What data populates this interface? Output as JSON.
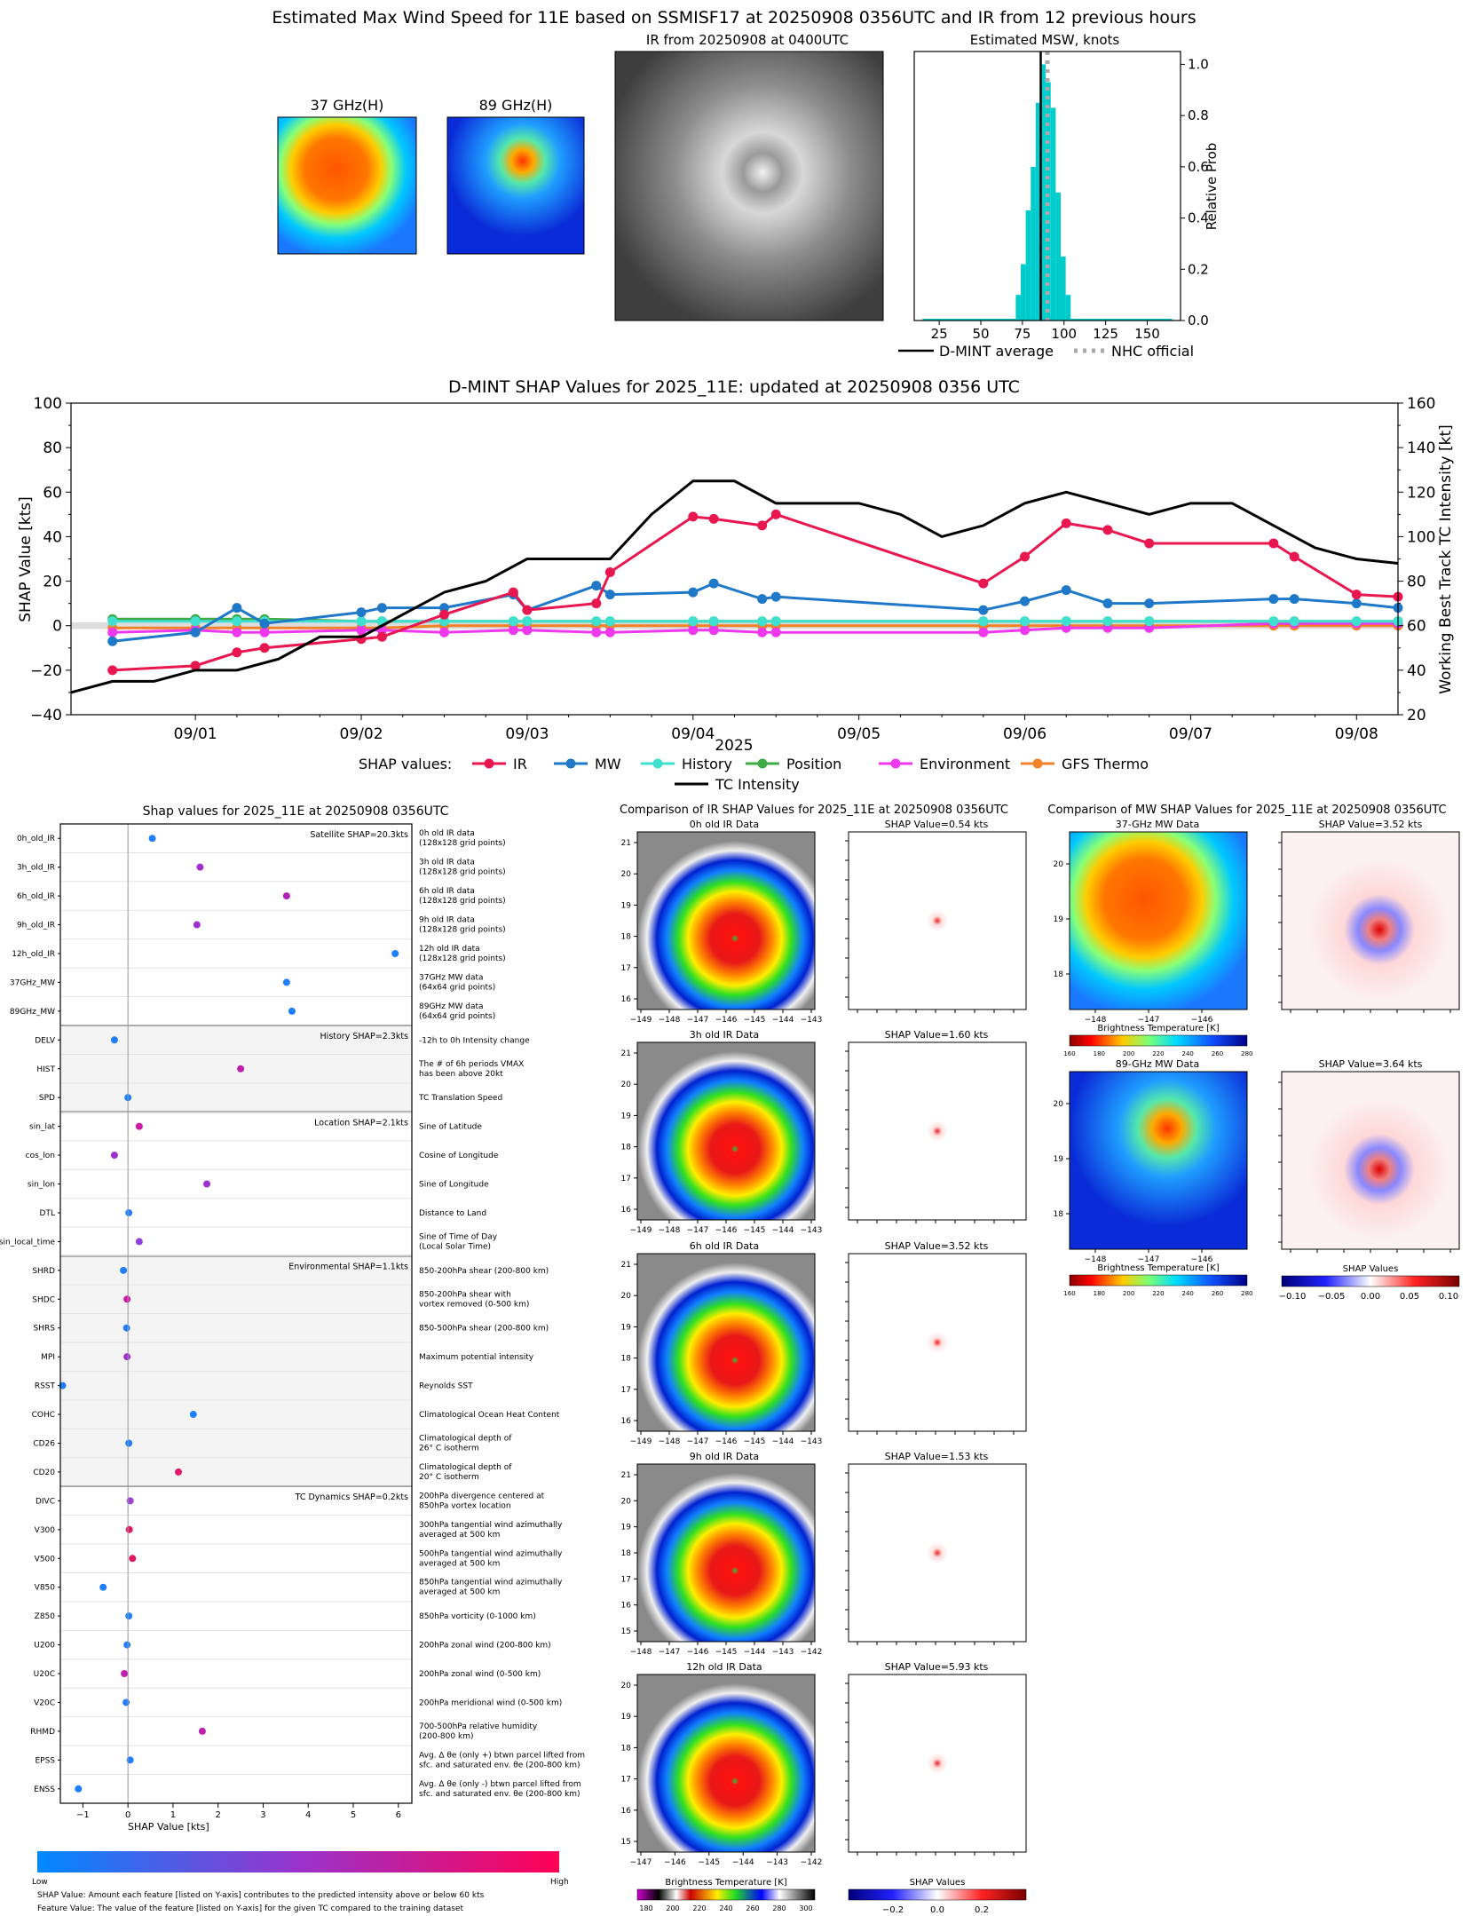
{
  "page_title": "Estimated Max Wind Speed for 11E based on SSMISF17 at 20250908 0356UTC and IR from 12 previous hours",
  "colors": {
    "ir": "#e8174f",
    "mw": "#1f78c8",
    "history": "#40e0d0",
    "position": "#3daa45",
    "environment": "#ee38ee",
    "gfs": "#f0822a",
    "intensity": "#000000",
    "histogram": "#00cccc",
    "nhc": "#aaaaaa",
    "low": "#0088ff",
    "high": "#ff0055"
  },
  "top": {
    "mw37_title": "37 GHz(H)",
    "mw89_title": "89 GHz(H)",
    "ir_title": "IR from 20250908 at 0400UTC",
    "hist_title": "Estimated MSW, knots",
    "hist_ylabel": "Relative Prob",
    "legend_dmint": "D-MINT average",
    "legend_nhc": "NHC official"
  },
  "panel_titles": {
    "bar": "Shap values for 2025_11E at 20250908 0356UTC",
    "ir_compare": "Comparison of IR SHAP Values for 2025_11E at 20250908 0356UTC",
    "mw_compare": "Comparison of MW SHAP Values for 2025_11E at 20250908 0356UTC"
  },
  "ir_panels": [
    {
      "label": "0h old IR Data",
      "shap": "SHAP Value=0.54 kts",
      "yticks": [
        "21",
        "20",
        "19",
        "18",
        "17",
        "16"
      ],
      "xticks": [
        "−149",
        "−148",
        "−147",
        "−146",
        "−145",
        "−144",
        "−143"
      ]
    },
    {
      "label": "3h old IR Data",
      "shap": "SHAP Value=1.60 kts",
      "yticks": [
        "21",
        "20",
        "19",
        "18",
        "17",
        "16"
      ],
      "xticks": [
        "−149",
        "−148",
        "−147",
        "−146",
        "−145",
        "−144",
        "−143"
      ]
    },
    {
      "label": "6h old IR Data",
      "shap": "SHAP Value=3.52 kts",
      "yticks": [
        "21",
        "20",
        "19",
        "18",
        "17",
        "16"
      ],
      "xticks": [
        "−149",
        "−148",
        "−147",
        "−146",
        "−145",
        "−144",
        "−143"
      ]
    },
    {
      "label": "9h old IR Data",
      "shap": "SHAP Value=1.53 kts",
      "yticks": [
        "21",
        "20",
        "19",
        "18",
        "17",
        "16",
        "15"
      ],
      "xticks": [
        "−148",
        "−147",
        "−146",
        "−145",
        "−144",
        "−143",
        "−142"
      ]
    },
    {
      "label": "12h old IR Data",
      "shap": "SHAP Value=5.93 kts",
      "yticks": [
        "20",
        "19",
        "18",
        "17",
        "16",
        "15"
      ],
      "xticks": [
        "−147",
        "−146",
        "−145",
        "−144",
        "−143",
        "−142"
      ]
    }
  ],
  "ir_colorbar": {
    "label": "Brightness Temperature [K]",
    "ticks": [
      "180",
      "200",
      "220",
      "240",
      "260",
      "280",
      "300"
    ]
  },
  "ir_shap_colorbar": {
    "label": "SHAP Values",
    "ticks": [
      "−0.2",
      "0.0",
      "0.2"
    ]
  },
  "mw_panels": [
    {
      "label": "37-GHz MW Data",
      "shap": "SHAP Value=3.52 kts",
      "yticks": [
        "20",
        "19",
        "18"
      ],
      "xticks": [
        "−148",
        "−147",
        "−146"
      ],
      "cb_label": "Brightness Temperature [K]",
      "cb_ticks": [
        "160",
        "180",
        "200",
        "220",
        "240",
        "260",
        "280"
      ]
    },
    {
      "label": "89-GHz MW Data",
      "shap": "SHAP Value=3.64 kts",
      "yticks": [
        "20",
        "19",
        "18"
      ],
      "xticks": [
        "−148",
        "−147",
        "−146"
      ],
      "cb_label": "Brightness Temperature [K]",
      "cb_ticks": [
        "160",
        "180",
        "200",
        "220",
        "240",
        "260",
        "280"
      ]
    }
  ],
  "mw_shap_colorbar": {
    "label": "SHAP Values",
    "ticks": [
      "−0.10",
      "−0.05",
      "0.00",
      "0.05",
      "0.10"
    ]
  },
  "bottom_colorbar": {
    "low": "Low",
    "high": "High"
  },
  "footnotes": [
    "SHAP Value: Amount each feature [listed on Y-axis] contributes to the predicted intensity above or below 60 kts",
    "Feature Value: The value of the feature [listed on Y-axis] for the given TC compared to the training dataset"
  ],
  "chart_data": [
    {
      "type": "bar",
      "title": "Estimated MSW, knots",
      "xlabel": "",
      "ylabel": "Relative Prob",
      "xlim": [
        10,
        170
      ],
      "ylim": [
        0,
        1.05
      ],
      "xticks": [
        "25",
        "50",
        "75",
        "100",
        "125",
        "150"
      ],
      "yticks": [
        "0.0",
        "0.2",
        "0.4",
        "0.6",
        "0.8",
        "1.0"
      ],
      "bin_edges": [
        71,
        74,
        77,
        80,
        83,
        86,
        89,
        92,
        95,
        98,
        101,
        104
      ],
      "values": [
        0.1,
        0.22,
        0.43,
        0.6,
        0.85,
        1.0,
        0.93,
        0.83,
        0.5,
        0.25,
        0.1
      ],
      "dmint_average": 86,
      "nhc_official": 90
    },
    {
      "type": "line",
      "title": "D-MINT SHAP Values for 2025_11E: updated at 20250908 0356 UTC",
      "xlabel": "2025",
      "ylabel": "SHAP Value [kts]",
      "y2label": "Working Best Track TC Intensity [kt]",
      "xlim": [
        "08-31 06:00",
        "09-08 06:00"
      ],
      "ylim": [
        -40,
        100
      ],
      "y2lim": [
        20,
        160
      ],
      "xticks": [
        "09/01",
        "09/02",
        "09/03",
        "09/04",
        "09/05",
        "09/06",
        "09/07",
        "09/08"
      ],
      "yticks": [
        "−40",
        "−20",
        "0",
        "20",
        "40",
        "60",
        "80",
        "100"
      ],
      "y2ticks": [
        "20",
        "40",
        "60",
        "80",
        "100",
        "120",
        "140",
        "160"
      ],
      "legend_title": "SHAP values:",
      "legend_items": [
        "IR",
        "MW",
        "History",
        "Position",
        "Environment",
        "GFS Thermo"
      ],
      "legend_intensity": "TC Intensity",
      "x": [
        "08-31 12:00",
        "09-01 00:00",
        "09-01 06:00",
        "09-01 10:00",
        "09-02 00:00",
        "09-02 03:00",
        "09-02 12:00",
        "09-02 22:00",
        "09-03 00:00",
        "09-03 10:00",
        "09-03 12:00",
        "09-04 00:00",
        "09-04 03:00",
        "09-04 10:00",
        "09-04 12:00",
        "09-05 18:00",
        "09-06 00:00",
        "09-06 06:00",
        "09-06 12:00",
        "09-06 18:00",
        "09-07 12:00",
        "09-07 15:00",
        "09-08 00:00",
        "09-08 06:00"
      ],
      "series": [
        {
          "name": "IR",
          "values": [
            -20,
            -18,
            -12,
            -10,
            -6,
            -5,
            5,
            15,
            7,
            10,
            24,
            49,
            48,
            45,
            50,
            19,
            31,
            46,
            43,
            37,
            37,
            31,
            14,
            13
          ]
        },
        {
          "name": "MW",
          "values": [
            -7,
            -3,
            8,
            1,
            6,
            8,
            8,
            14,
            7,
            18,
            14,
            15,
            19,
            12,
            13,
            7,
            11,
            16,
            10,
            10,
            12,
            12,
            10,
            8
          ]
        },
        {
          "name": "History",
          "values": [
            2,
            2,
            2,
            2,
            2,
            2,
            2,
            2,
            2,
            2,
            2,
            2,
            2,
            2,
            2,
            2,
            2,
            2,
            2,
            2,
            2,
            2,
            2,
            2
          ]
        },
        {
          "name": "Position",
          "values": [
            3,
            3,
            3,
            3,
            2,
            2,
            2,
            2,
            2,
            2,
            2,
            2,
            2,
            2,
            2,
            2,
            2,
            2,
            2,
            2,
            2,
            2,
            2,
            2
          ]
        },
        {
          "name": "Environment",
          "values": [
            -3,
            -2,
            -3,
            -3,
            -2,
            -2,
            -3,
            -2,
            -2,
            -3,
            -3,
            -2,
            -2,
            -3,
            -3,
            -3,
            -2,
            -1,
            -1,
            -1,
            1,
            1,
            1,
            1
          ]
        },
        {
          "name": "GFS Thermo",
          "values": [
            -1,
            -1,
            -1,
            -1,
            -1,
            -1,
            0,
            0,
            0,
            0,
            0,
            0,
            0,
            0,
            0,
            0,
            0,
            0,
            0,
            0,
            0,
            0,
            0,
            0
          ]
        }
      ],
      "intensity": {
        "name": "TC Intensity",
        "x": [
          "08-31 06:00",
          "08-31 12:00",
          "08-31 18:00",
          "09-01 00:00",
          "09-01 06:00",
          "09-01 12:00",
          "09-01 18:00",
          "09-02 00:00",
          "09-02 06:00",
          "09-02 12:00",
          "09-02 18:00",
          "09-03 00:00",
          "09-03 06:00",
          "09-03 12:00",
          "09-03 18:00",
          "09-04 00:00",
          "09-04 06:00",
          "09-04 12:00",
          "09-04 18:00",
          "09-05 00:00",
          "09-05 06:00",
          "09-05 12:00",
          "09-05 18:00",
          "09-06 00:00",
          "09-06 06:00",
          "09-06 12:00",
          "09-06 18:00",
          "09-07 00:00",
          "09-07 06:00",
          "09-07 12:00",
          "09-07 18:00",
          "09-08 00:00",
          "09-08 06:00"
        ],
        "values": [
          30,
          35,
          35,
          40,
          40,
          45,
          55,
          55,
          65,
          75,
          80,
          90,
          90,
          90,
          110,
          125,
          125,
          115,
          115,
          115,
          110,
          100,
          105,
          115,
          120,
          115,
          110,
          115,
          115,
          105,
          95,
          90,
          88
        ]
      }
    },
    {
      "type": "scatter",
      "title": "Shap values for 2025_11E at 20250908 0356UTC",
      "xlabel": "SHAP Value [kts]",
      "ylabel": "",
      "xlim": [
        -1.5,
        6.3
      ],
      "xticks": [
        "−1",
        "0",
        "1",
        "2",
        "3",
        "4",
        "5",
        "6"
      ],
      "groups": [
        {
          "label": "Satellite SHAP=20.3kts",
          "features": [
            {
              "name": "0h_old_IR",
              "desc": [
                "0h old IR data",
                "(128x128 grid points)"
              ],
              "shap": 0.54,
              "color": "#1f7fff"
            },
            {
              "name": "3h_old_IR",
              "desc": [
                "3h old IR data",
                "(128x128 grid points)"
              ],
              "shap": 1.6,
              "color": "#a02fd0"
            },
            {
              "name": "6h_old_IR",
              "desc": [
                "6h old IR data",
                "(128x128 grid points)"
              ],
              "shap": 3.52,
              "color": "#b020b8"
            },
            {
              "name": "9h_old_IR",
              "desc": [
                "9h old IR data",
                "(128x128 grid points)"
              ],
              "shap": 1.53,
              "color": "#a02fd0"
            },
            {
              "name": "12h_old_IR",
              "desc": [
                "12h old IR data",
                "(128x128 grid points)"
              ],
              "shap": 5.93,
              "color": "#1f7fff"
            },
            {
              "name": "37GHz_MW",
              "desc": [
                "37GHz MW data",
                "(64x64 grid points)"
              ],
              "shap": 3.52,
              "color": "#1f7fff"
            },
            {
              "name": "89GHz_MW",
              "desc": [
                "89GHz MW data",
                "(64x64 grid points)"
              ],
              "shap": 3.64,
              "color": "#1f7fff"
            }
          ]
        },
        {
          "label": "History SHAP=2.3kts",
          "features": [
            {
              "name": "DELV",
              "desc": [
                "-12h to 0h Intensity change"
              ],
              "shap": -0.3,
              "color": "#1f7fff"
            },
            {
              "name": "HIST",
              "desc": [
                "The # of 6h periods VMAX",
                "has been above 20kt"
              ],
              "shap": 2.5,
              "color": "#c020b0"
            },
            {
              "name": "SPD",
              "desc": [
                "TC Translation Speed"
              ],
              "shap": 0.0,
              "color": "#1f7fff"
            }
          ]
        },
        {
          "label": "Location SHAP=2.1kts",
          "features": [
            {
              "name": "sin_lat",
              "desc": [
                "Sine of Latitude"
              ],
              "shap": 0.25,
              "color": "#d018a8"
            },
            {
              "name": "cos_lon",
              "desc": [
                "Cosine of Longitude"
              ],
              "shap": -0.3,
              "color": "#a02fd0"
            },
            {
              "name": "sin_lon",
              "desc": [
                "Sine of Longitude"
              ],
              "shap": 1.75,
              "color": "#a02fd0"
            },
            {
              "name": "DTL",
              "desc": [
                "Distance to Land"
              ],
              "shap": 0.02,
              "color": "#1f7fff"
            },
            {
              "name": "sin_local_time",
              "desc": [
                "Sine of Time of Day",
                "(Local Solar Time)"
              ],
              "shap": 0.25,
              "color": "#9040e0"
            }
          ]
        },
        {
          "label": "Environmental SHAP=1.1kts",
          "features": [
            {
              "name": "SHRD",
              "desc": [
                "850-200hPa shear (200-800 km)"
              ],
              "shap": -0.1,
              "color": "#1f7fff"
            },
            {
              "name": "SHDC",
              "desc": [
                "850-200hPa shear with",
                "vortex removed (0-500 km)"
              ],
              "shap": -0.02,
              "color": "#d018a8"
            },
            {
              "name": "SHRS",
              "desc": [
                "850-500hPa shear (200-800 km)"
              ],
              "shap": -0.03,
              "color": "#1f7fff"
            },
            {
              "name": "MPI",
              "desc": [
                "Maximum potential intensity"
              ],
              "shap": -0.02,
              "color": "#a02fd0"
            },
            {
              "name": "RSST",
              "desc": [
                "Reynolds SST"
              ],
              "shap": -1.45,
              "color": "#1f7fff"
            },
            {
              "name": "COHC",
              "desc": [
                "Climatological Ocean Heat Content"
              ],
              "shap": 1.45,
              "color": "#1f7fff"
            },
            {
              "name": "CD26",
              "desc": [
                "Climatological depth of",
                "26° C isotherm"
              ],
              "shap": 0.02,
              "color": "#1f7fff"
            },
            {
              "name": "CD20",
              "desc": [
                "Climatological depth of",
                "20° C isotherm"
              ],
              "shap": 1.12,
              "color": "#e0186a"
            }
          ]
        },
        {
          "label": "TC Dynamics SHAP=0.2kts",
          "features": [
            {
              "name": "DIVC",
              "desc": [
                "200hPa divergence centered at",
                "850hPa vortex location"
              ],
              "shap": 0.05,
              "color": "#a040d0"
            },
            {
              "name": "V300",
              "desc": [
                "300hPa tangential wind azimuthally",
                "averaged at 500 km"
              ],
              "shap": 0.03,
              "color": "#e0186a"
            },
            {
              "name": "V500",
              "desc": [
                "500hPa tangential wind azimuthally",
                "averaged at 500 km"
              ],
              "shap": 0.1,
              "color": "#e0186a"
            },
            {
              "name": "V850",
              "desc": [
                "850hPa tangential wind azimuthally",
                "averaged at 500 km"
              ],
              "shap": -0.55,
              "color": "#1f7fff"
            },
            {
              "name": "Z850",
              "desc": [
                "850hPa vorticity (0-1000 km)"
              ],
              "shap": 0.02,
              "color": "#1f7fff"
            },
            {
              "name": "U200",
              "desc": [
                "200hPa zonal wind (200-800 km)"
              ],
              "shap": -0.02,
              "color": "#1f7fff"
            },
            {
              "name": "U20C",
              "desc": [
                "200hPa zonal wind (0-500 km)"
              ],
              "shap": -0.08,
              "color": "#c020b0"
            },
            {
              "name": "V20C",
              "desc": [
                "200hPa meridional wind (0-500 km)"
              ],
              "shap": -0.04,
              "color": "#1f7fff"
            },
            {
              "name": "RHMD",
              "desc": [
                "700-500hPa relative humidity",
                "(200-800 km)"
              ],
              "shap": 1.65,
              "color": "#c020b0"
            },
            {
              "name": "EPSS",
              "desc": [
                "Avg. Δ θe (only +) btwn parcel lifted from",
                "sfc. and saturated env. θe (200-800 km)"
              ],
              "shap": 0.05,
              "color": "#1f7fff"
            },
            {
              "name": "ENSS",
              "desc": [
                "Avg. Δ θe (only -) btwn parcel lifted from",
                "sfc. and saturated env. θe (200-800 km)"
              ],
              "shap": -1.1,
              "color": "#1f7fff"
            }
          ]
        }
      ]
    }
  ]
}
